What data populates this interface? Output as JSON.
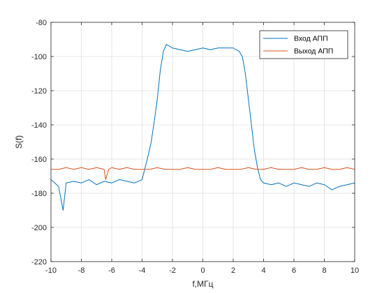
{
  "chart_data": {
    "type": "line",
    "title": "",
    "xlabel": "f,МГц",
    "ylabel": "S(f)",
    "xlim": [
      -10,
      10
    ],
    "ylim": [
      -220,
      -80
    ],
    "xticks": [
      "-10",
      "-8",
      "-6",
      "-4",
      "-2",
      "0",
      "2",
      "4",
      "6",
      "8",
      "10"
    ],
    "yticks": [
      "-220",
      "-200",
      "-180",
      "-160",
      "-140",
      "-120",
      "-100",
      "-80"
    ],
    "grid": true,
    "legend_position": "top-right",
    "series": [
      {
        "name": "Вход АПП",
        "color": "#0072BD",
        "x": [
          -10,
          -9.5,
          -9.2,
          -9,
          -8.5,
          -8,
          -7.5,
          -7,
          -6.5,
          -6,
          -5.5,
          -5,
          -4.5,
          -4,
          -3.8,
          -3.6,
          -3.4,
          -3.2,
          -3.0,
          -2.8,
          -2.6,
          -2.4,
          -2.2,
          -2.0,
          -1.5,
          -1.0,
          -0.5,
          0,
          0.5,
          1.0,
          1.5,
          2.0,
          2.4,
          2.6,
          2.8,
          3.0,
          3.2,
          3.4,
          3.6,
          3.8,
          4.0,
          4.5,
          5,
          5.5,
          6,
          6.5,
          7,
          7.5,
          8,
          8.5,
          9,
          9.5,
          10
        ],
        "values": [
          -172,
          -176,
          -190,
          -174,
          -173,
          -174,
          -172,
          -175,
          -173,
          -174,
          -172,
          -173,
          -174,
          -172,
          -165,
          -158,
          -150,
          -138,
          -125,
          -108,
          -97,
          -93,
          -94,
          -95,
          -96,
          -97,
          -96,
          -95,
          -96,
          -95,
          -95,
          -95,
          -97,
          -100,
          -110,
          -125,
          -140,
          -155,
          -165,
          -172,
          -174,
          -175,
          -174,
          -176,
          -174,
          -175,
          -176,
          -174,
          -175,
          -178,
          -176,
          -175,
          -174
        ]
      },
      {
        "name": "Выход АПП",
        "color": "#D95319",
        "x": [
          -10,
          -9.5,
          -9,
          -8.5,
          -8,
          -7.5,
          -7,
          -6.5,
          -6.4,
          -6.2,
          -6,
          -5.5,
          -5,
          -4.5,
          -4,
          -3.5,
          -3,
          -2.5,
          -2,
          -1.5,
          -1,
          -0.5,
          0,
          0.5,
          1,
          1.5,
          2,
          2.5,
          3,
          3.5,
          4,
          4.5,
          5,
          5.5,
          6,
          6.5,
          7,
          7.5,
          8,
          8.5,
          9,
          9.5,
          10
        ],
        "values": [
          -166,
          -166,
          -165,
          -166,
          -165,
          -166,
          -165,
          -166,
          -172,
          -166,
          -165,
          -166,
          -165,
          -166,
          -166,
          -166,
          -165,
          -166,
          -166,
          -166,
          -165,
          -166,
          -166,
          -166,
          -165,
          -166,
          -166,
          -166,
          -165,
          -166,
          -166,
          -165,
          -166,
          -166,
          -166,
          -165,
          -166,
          -166,
          -165,
          -166,
          -166,
          -165,
          -166
        ]
      }
    ]
  }
}
